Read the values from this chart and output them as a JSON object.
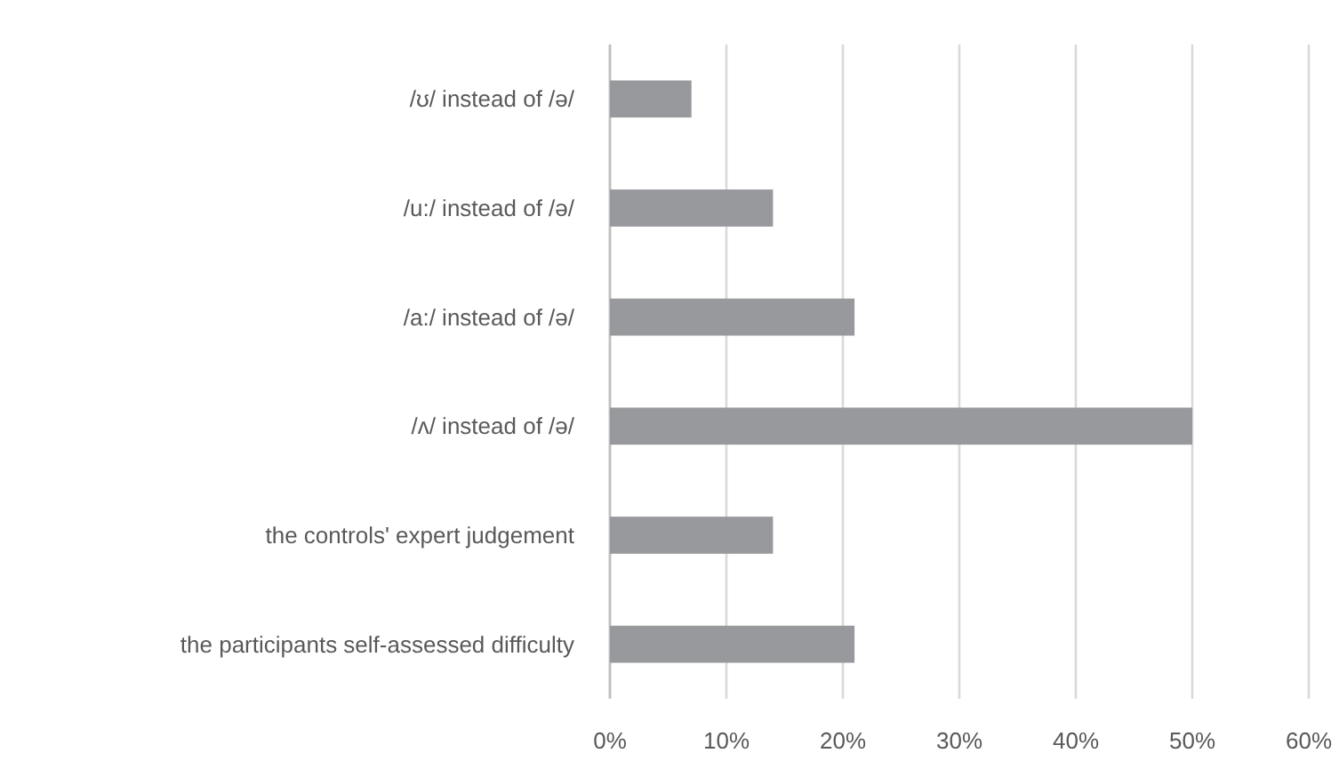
{
  "chart_data": {
    "type": "bar",
    "orientation": "horizontal",
    "categories": [
      "/ʊ/ instead of /ə/",
      "/u:/ instead of /ə/",
      "/a:/ instead of /ə/",
      "/ʌ/ instead of /ə/",
      "the controls' expert judgement",
      "the participants self-assessed difficulty"
    ],
    "values": [
      7,
      14,
      21,
      50,
      14,
      21
    ],
    "color": "#98999c",
    "xlim": [
      0,
      60
    ],
    "xticks": [
      {
        "value": 0,
        "label": "0%"
      },
      {
        "value": 10,
        "label": "10%"
      },
      {
        "value": 20,
        "label": "20%"
      },
      {
        "value": 30,
        "label": "30%"
      },
      {
        "value": 40,
        "label": "40%"
      },
      {
        "value": 50,
        "label": "50%"
      },
      {
        "value": 60,
        "label": "60%"
      }
    ],
    "grid": "x"
  }
}
